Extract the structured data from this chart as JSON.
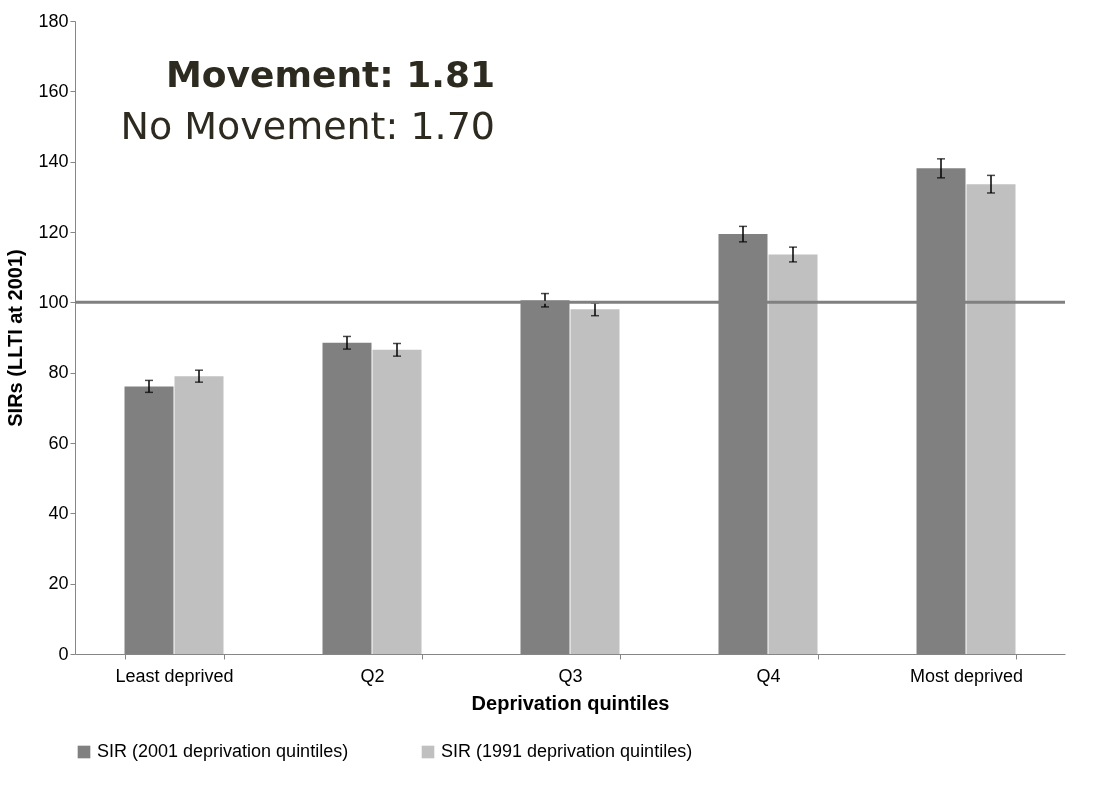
{
  "chart_data": {
    "type": "bar",
    "xlabel": "Deprivation quintiles",
    "ylabel": "SIRs (LLTI at 2001)",
    "categories": [
      "Least deprived",
      "Q2",
      "Q3",
      "Q4",
      "Most deprived"
    ],
    "series": [
      {
        "name": "SIR (2001 deprivation quintiles)",
        "color": "#808080",
        "values": [
          76.1,
          88.5,
          100.6,
          119.4,
          138.1
        ],
        "errors": [
          1.7,
          1.8,
          1.9,
          2.2,
          2.7
        ]
      },
      {
        "name": "SIR (1991 deprivation quintiles)",
        "color": "#c0c0c0",
        "values": [
          79,
          86.5,
          98,
          113.6,
          133.6
        ],
        "errors": [
          1.7,
          1.8,
          1.8,
          2.1,
          2.5
        ]
      }
    ],
    "ylim": [
      0,
      180
    ],
    "yticks": [
      0,
      20,
      40,
      60,
      80,
      100,
      120,
      140,
      160,
      180
    ],
    "grid": false,
    "legend": "bottom",
    "ref_lines": [
      {
        "axis": "y",
        "value": 100,
        "color": "#808080"
      }
    ],
    "annotations": [
      "Movement: 1.81",
      "No Movement: 1.70"
    ]
  }
}
